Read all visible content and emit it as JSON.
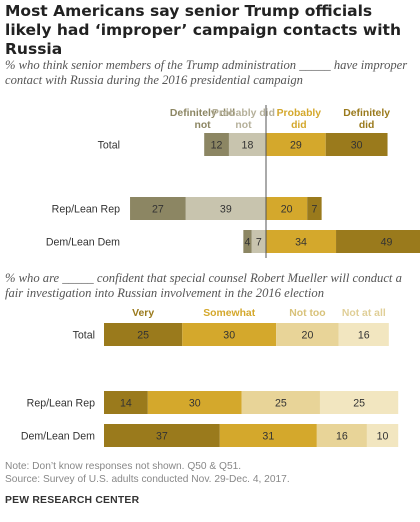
{
  "title": "Most Americans say senior Trump officials likely had ‘improper’ campaign contacts with Russia",
  "chart_data": [
    {
      "type": "bar",
      "subtitle": "% who think senior members of the Trump administration _____ have improper contact with Russia during the 2016 presidential campaign",
      "categories": [
        "Total",
        "Rep/Lean Rep",
        "Dem/Lean Dem"
      ],
      "series": [
        {
          "name": "Definitely did not",
          "values": [
            12,
            27,
            4
          ],
          "color": "#8c8663",
          "label_color": "#8c8663"
        },
        {
          "name": "Probably did not",
          "values": [
            18,
            39,
            7
          ],
          "color": "#c8c4ae",
          "label_color": "#b5b09a"
        },
        {
          "name": "Probably did",
          "values": [
            29,
            20,
            34
          ],
          "color": "#d4a82c",
          "label_color": "#d4a82c"
        },
        {
          "name": "Definitely did",
          "values": [
            30,
            7,
            49
          ],
          "color": "#9a7a1c",
          "label_color": "#9a7a1c"
        }
      ],
      "diverging": true
    },
    {
      "type": "bar",
      "subtitle": "% who are _____ confident that  special counsel Robert Mueller will conduct a fair investigation into Russian involvement in the 2016 election",
      "categories": [
        "Total",
        "Rep/Lean Rep",
        "Dem/Lean Dem"
      ],
      "series": [
        {
          "name": "Very",
          "values": [
            25,
            14,
            37
          ],
          "color": "#9a7a1c",
          "label_color": "#9a7a1c"
        },
        {
          "name": "Somewhat",
          "values": [
            30,
            30,
            31
          ],
          "color": "#d4a82c",
          "label_color": "#d4a82c"
        },
        {
          "name": "Not too",
          "values": [
            20,
            25,
            16
          ],
          "color": "#e8d498",
          "label_color": "#d8c27a"
        },
        {
          "name": "Not at all",
          "values": [
            16,
            25,
            10
          ],
          "color": "#f2e6c0",
          "label_color": "#e0cf98"
        }
      ],
      "stacked": true
    }
  ],
  "footer": {
    "note": "Note: Don’t know responses not shown. Q50 & Q51.",
    "source": "Source: Survey of U.S. adults conducted Nov. 29-Dec. 4, 2017.",
    "org": "PEW RESEARCH CENTER"
  }
}
